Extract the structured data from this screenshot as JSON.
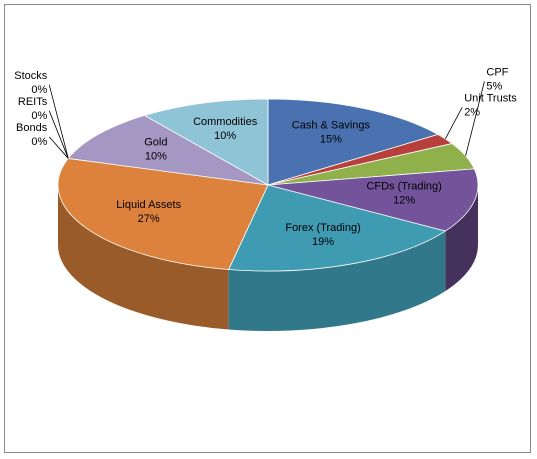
{
  "chart_data": {
    "type": "pie",
    "title": "",
    "slices": [
      {
        "label": "Cash & Savings",
        "value": 15,
        "value_label": "15%",
        "color": "#4a72b0"
      },
      {
        "label": "Unit Trusts",
        "value": 2,
        "value_label": "2%",
        "color": "#b8403c"
      },
      {
        "label": "CPF",
        "value": 5,
        "value_label": "5%",
        "color": "#8fb04a"
      },
      {
        "label": "CFDs (Trading)",
        "value": 12,
        "value_label": "12%",
        "color": "#73549a"
      },
      {
        "label": "Forex (Trading)",
        "value": 19,
        "value_label": "19%",
        "color": "#3f9bb2"
      },
      {
        "label": "Liquid Assets",
        "value": 27,
        "value_label": "27%",
        "color": "#dd823c"
      },
      {
        "label": "Bonds",
        "value": 0,
        "value_label": "0%",
        "color": "#dd823c"
      },
      {
        "label": "REITs",
        "value": 0,
        "value_label": "0%",
        "color": "#9f92c0"
      },
      {
        "label": "Stocks",
        "value": 0,
        "value_label": "0%",
        "color": "#9f92c0"
      },
      {
        "label": "Gold",
        "value": 10,
        "value_label": "10%",
        "color": "#a497c4"
      },
      {
        "label": "Commodities",
        "value": 10,
        "value_label": "10%",
        "color": "#8ec4d6"
      }
    ],
    "legend": "none",
    "style": "3d-exploded-free"
  }
}
